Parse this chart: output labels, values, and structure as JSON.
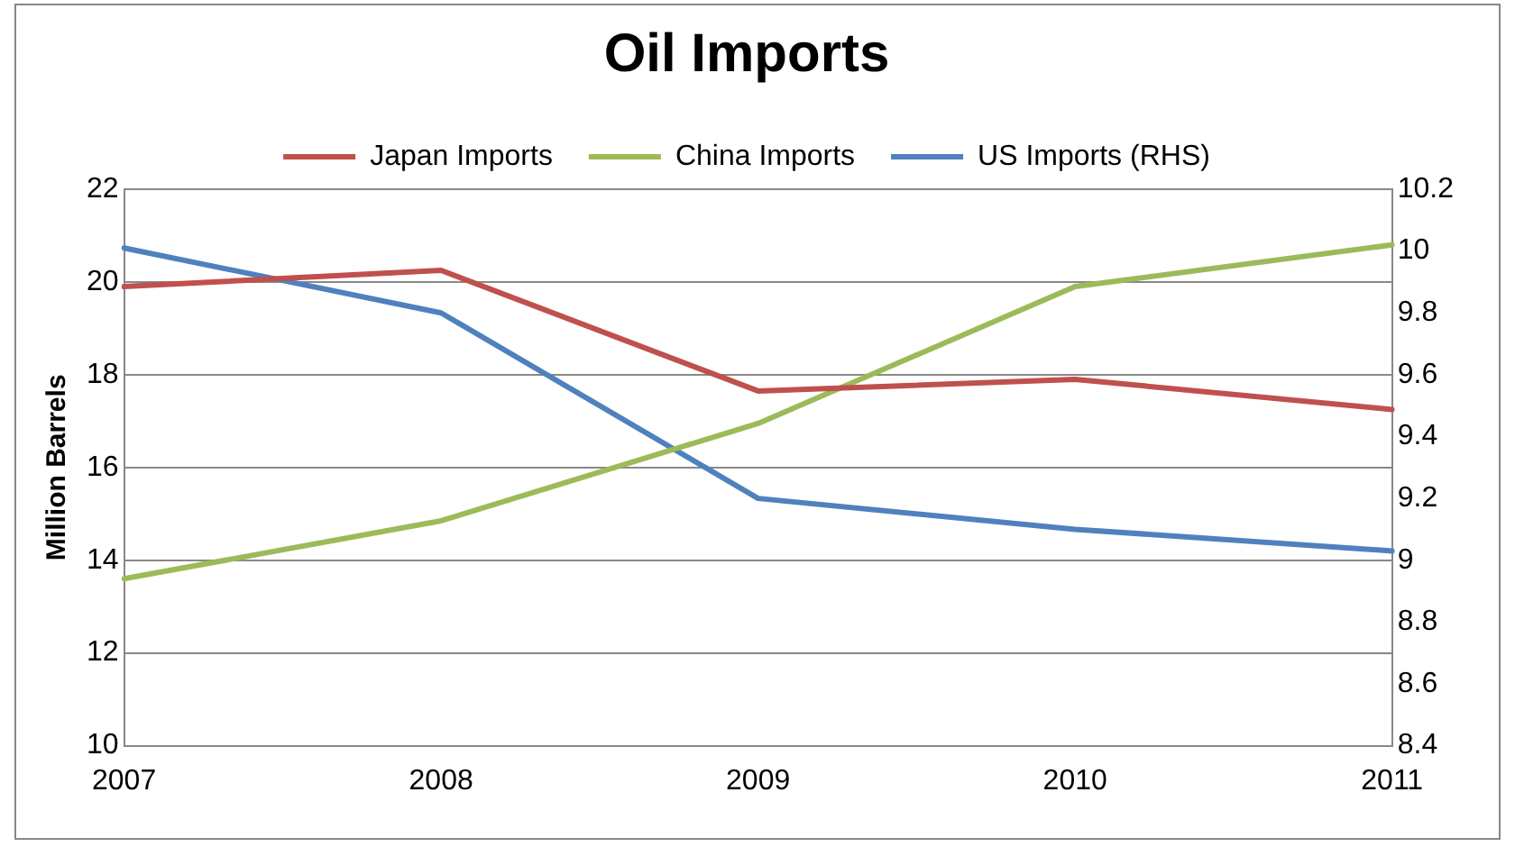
{
  "chart_data": {
    "type": "line",
    "title": "Oil Imports",
    "ylabel": "Million Barrels",
    "categories": [
      "2007",
      "2008",
      "2009",
      "2010",
      "2011"
    ],
    "series": [
      {
        "name": "Japan Imports",
        "color": "#c0504d",
        "values": [
          19.9,
          20.25,
          17.65,
          17.9,
          17.25
        ]
      },
      {
        "name": "China Imports",
        "color": "#9bbb59",
        "values": [
          13.6,
          14.85,
          16.95,
          19.9,
          20.8
        ]
      },
      {
        "name": "US Imports (RHS)",
        "color": "#4f81bd",
        "axis": "y2",
        "values": [
          10.01,
          9.8,
          9.2,
          9.1,
          9.03
        ]
      }
    ],
    "ylim": [
      10,
      22
    ],
    "yticks": [
      10,
      12,
      14,
      16,
      18,
      20,
      22
    ],
    "y2lim": [
      8.4,
      10.2
    ],
    "y2ticks": [
      8.4,
      8.6,
      8.8,
      9,
      9.2,
      9.4,
      9.6,
      9.8,
      10,
      10.2
    ],
    "grid": "y",
    "legend": "top",
    "marker": "none",
    "line_style": "solid"
  }
}
